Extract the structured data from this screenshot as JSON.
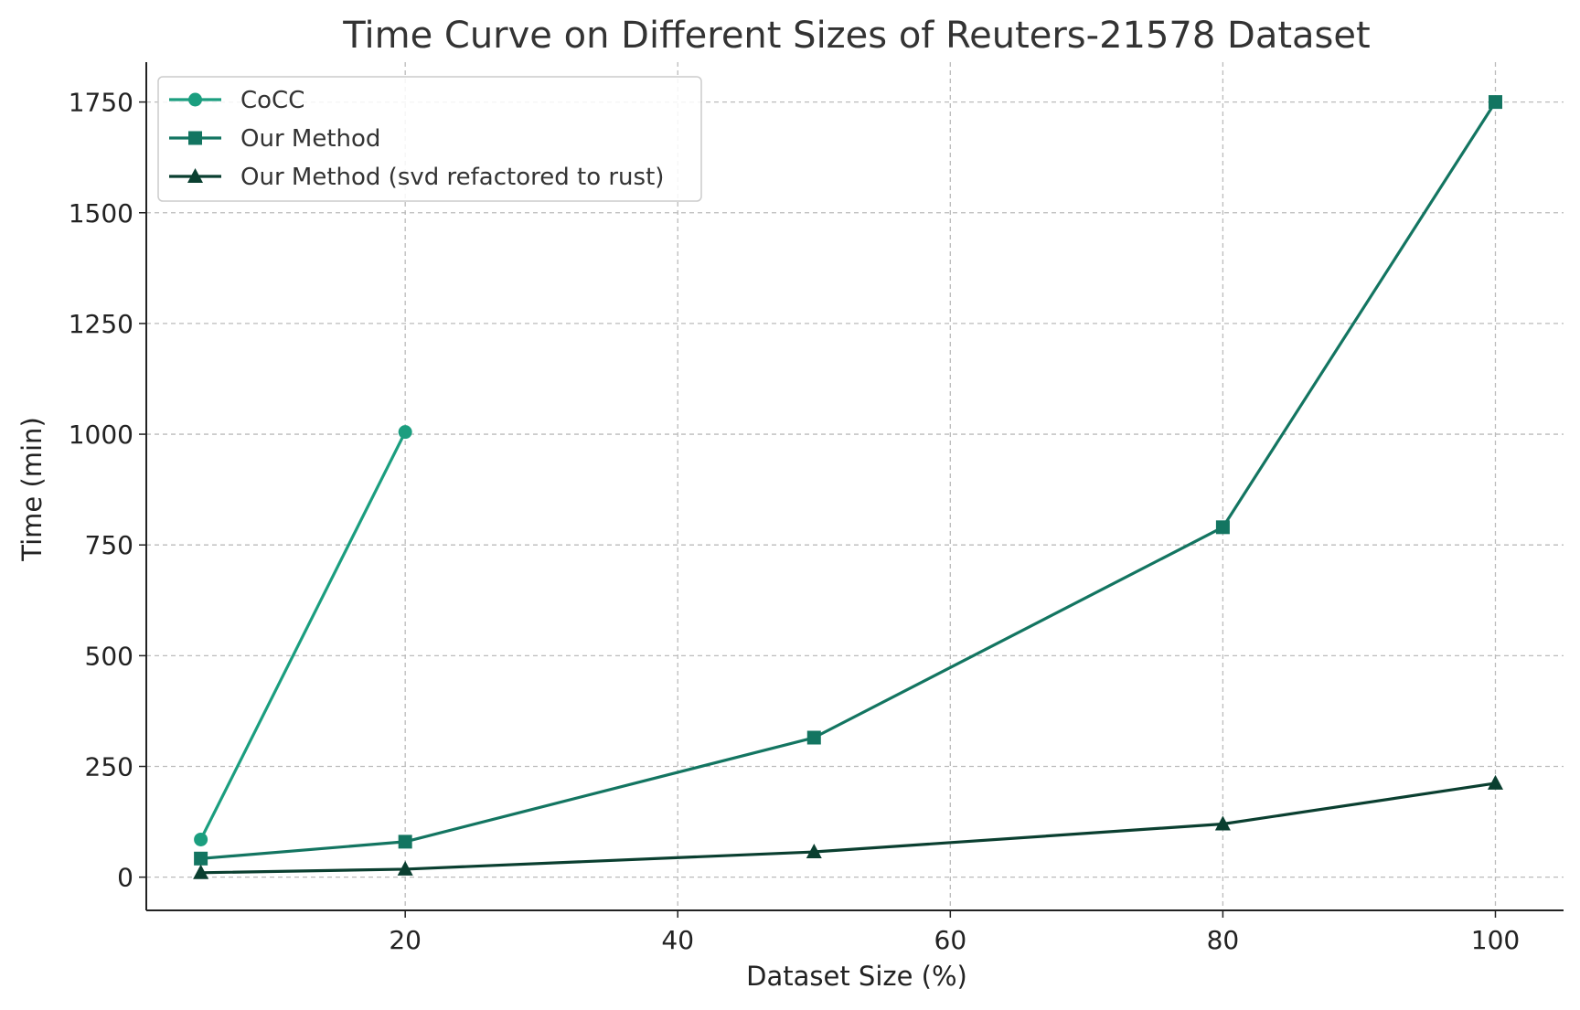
{
  "chart_data": {
    "type": "line",
    "title": "Time Curve on Different Sizes of Reuters-21578 Dataset",
    "xlabel": "Dataset Size (%)",
    "ylabel": "Time (min)",
    "xlim": [
      1,
      105
    ],
    "ylim": [
      -75,
      1840
    ],
    "xticks": [
      20,
      40,
      60,
      80,
      100
    ],
    "yticks": [
      0,
      250,
      500,
      750,
      1000,
      1250,
      1500,
      1750
    ],
    "grid": true,
    "legend_position": "top-left",
    "series": [
      {
        "name": "CoCC",
        "marker": "circle",
        "color": "#1b9e7f",
        "x": [
          5,
          20
        ],
        "y": [
          85,
          1005
        ]
      },
      {
        "name": "Our Method",
        "marker": "square",
        "color": "#137561",
        "x": [
          5,
          20,
          50,
          80,
          100
        ],
        "y": [
          42,
          80,
          315,
          790,
          1750
        ]
      },
      {
        "name": "Our Method (svd refactored to rust)",
        "marker": "triangle",
        "color": "#0a3f30",
        "x": [
          5,
          20,
          50,
          80,
          100
        ],
        "y": [
          10,
          18,
          57,
          120,
          212
        ]
      }
    ]
  }
}
